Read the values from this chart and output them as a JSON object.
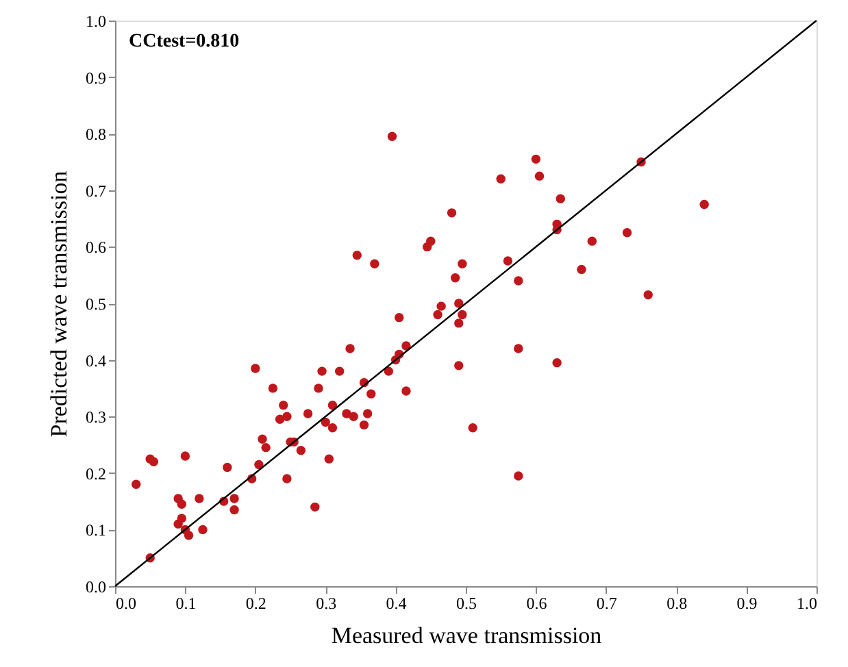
{
  "chart_data": {
    "type": "scatter",
    "xlabel": "Measured wave transmission",
    "ylabel": "Predicted wave transmission",
    "annotations": [
      "CCtest=0.810"
    ],
    "xlim": [
      0,
      1
    ],
    "ylim": [
      0,
      1
    ],
    "xticks": [
      {
        "value": 0,
        "label": "0.0"
      },
      {
        "value": 0.1,
        "label": "0.1"
      },
      {
        "value": 0.2,
        "label": "0.2"
      },
      {
        "value": 0.3,
        "label": "0.3"
      },
      {
        "value": 0.4,
        "label": "0.4"
      },
      {
        "value": 0.5,
        "label": "0.5"
      },
      {
        "value": 0.6,
        "label": "0.6"
      },
      {
        "value": 0.7,
        "label": "0.7"
      },
      {
        "value": 0.8,
        "label": "0.8"
      },
      {
        "value": 0.9,
        "label": "0.9"
      },
      {
        "value": 1,
        "label": "1.0"
      }
    ],
    "yticks": [
      {
        "value": 0,
        "label": "0.0"
      },
      {
        "value": 0.1,
        "label": "0.1"
      },
      {
        "value": 0.2,
        "label": "0.2"
      },
      {
        "value": 0.3,
        "label": "0.3"
      },
      {
        "value": 0.4,
        "label": "0.4"
      },
      {
        "value": 0.5,
        "label": "0.5"
      },
      {
        "value": 0.6,
        "label": "0.6"
      },
      {
        "value": 0.7,
        "label": "0.7"
      },
      {
        "value": 0.8,
        "label": "0.8"
      },
      {
        "value": 0.9,
        "label": "0.9"
      },
      {
        "value": 1,
        "label": "1.0"
      }
    ],
    "grid": false,
    "marker": "circle",
    "series": [
      {
        "color": "#c0171c",
        "x": [
          0.03,
          0.05,
          0.05,
          0.055,
          0.09,
          0.09,
          0.095,
          0.095,
          0.1,
          0.1,
          0.105,
          0.12,
          0.125,
          0.155,
          0.16,
          0.17,
          0.17,
          0.195,
          0.2,
          0.205,
          0.21,
          0.215,
          0.225,
          0.235,
          0.24,
          0.245,
          0.245,
          0.25,
          0.255,
          0.265,
          0.275,
          0.285,
          0.29,
          0.295,
          0.3,
          0.305,
          0.31,
          0.31,
          0.32,
          0.33,
          0.335,
          0.34,
          0.345,
          0.355,
          0.355,
          0.36,
          0.365,
          0.37,
          0.395,
          0.39,
          0.4,
          0.405,
          0.405,
          0.415,
          0.415,
          0.445,
          0.45,
          0.46,
          0.465,
          0.48,
          0.485,
          0.49,
          0.49,
          0.49,
          0.495,
          0.495,
          0.51,
          0.55,
          0.56,
          0.575,
          0.575,
          0.575,
          0.6,
          0.605,
          0.63,
          0.63,
          0.63,
          0.635,
          0.665,
          0.68,
          0.73,
          0.75,
          0.76,
          0.84
        ],
        "values": [
          0.18,
          0.05,
          0.225,
          0.22,
          0.11,
          0.155,
          0.145,
          0.12,
          0.23,
          0.1,
          0.09,
          0.155,
          0.1,
          0.15,
          0.21,
          0.135,
          0.155,
          0.19,
          0.385,
          0.215,
          0.26,
          0.245,
          0.35,
          0.295,
          0.32,
          0.19,
          0.3,
          0.255,
          0.255,
          0.24,
          0.305,
          0.14,
          0.35,
          0.38,
          0.29,
          0.225,
          0.32,
          0.28,
          0.38,
          0.305,
          0.42,
          0.3,
          0.585,
          0.36,
          0.285,
          0.305,
          0.34,
          0.57,
          0.795,
          0.38,
          0.4,
          0.41,
          0.475,
          0.425,
          0.345,
          0.6,
          0.61,
          0.48,
          0.495,
          0.66,
          0.545,
          0.5,
          0.39,
          0.465,
          0.57,
          0.48,
          0.28,
          0.72,
          0.575,
          0.54,
          0.42,
          0.195,
          0.755,
          0.725,
          0.395,
          0.64,
          0.63,
          0.685,
          0.56,
          0.61,
          0.625,
          0.75,
          0.515,
          0.675
        ]
      },
      {
        "type": "line",
        "color": "#000000",
        "marker": "none",
        "line_style": "solid",
        "x": [
          0,
          1
        ],
        "values": [
          0,
          1
        ]
      }
    ]
  }
}
